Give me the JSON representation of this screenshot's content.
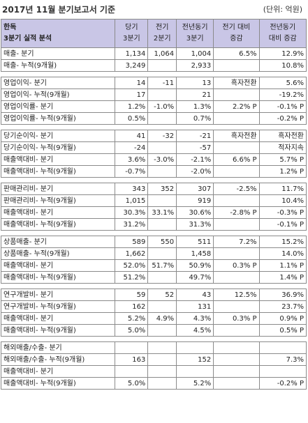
{
  "title": "2017년 11월 분기보고서 기준",
  "unit": "(단위: 억원)",
  "header": {
    "company_line1": "한독",
    "company_line2": "3분기 실적 분석",
    "col1_line1": "당기",
    "col1_line2": "3분기",
    "col2_line1": "전기",
    "col2_line2": "2분기",
    "col3_line1": "전년동기",
    "col3_line2": "3분기",
    "col4_line1": "전기 대비",
    "col4_line2": "증감",
    "col5_line1": "전년동기",
    "col5_line2": "대비 증감"
  },
  "sections": [
    {
      "rows": [
        [
          "매출- 분기",
          "1,134",
          "1,064",
          "1,004",
          "6.5%",
          "12.9%"
        ],
        [
          "매출- 누적(9개월)",
          "3,249",
          "",
          "2,933",
          "",
          "10.8%"
        ]
      ]
    },
    {
      "rows": [
        [
          "영업이익- 분기",
          "14",
          "-11",
          "13",
          "흑자전환",
          "5.6%"
        ],
        [
          "영업이익- 누적(9개월)",
          "17",
          "",
          "21",
          "",
          "-19.2%"
        ],
        [
          "영업이익률- 분기",
          "1.2%",
          "-1.0%",
          "1.3%",
          "2.2% P",
          "-0.1% P"
        ],
        [
          "영업이익률- 누적(9개월)",
          "0.5%",
          "",
          "0.7%",
          "",
          "-0.2% P"
        ]
      ]
    },
    {
      "rows": [
        [
          "당기순이익- 분기",
          "41",
          "-32",
          "-21",
          "흑자전환",
          "흑자전환"
        ],
        [
          "당기순이익- 누적(9개월)",
          "-24",
          "",
          "-57",
          "",
          "적자지속"
        ],
        [
          "매출액대비- 분기",
          "3.6%",
          "-3.0%",
          "-2.1%",
          "6.6% P",
          "5.7% P"
        ],
        [
          "매출액대비- 누적(9개월)",
          "-0.7%",
          "",
          "-2.0%",
          "",
          "1.2% P"
        ]
      ]
    },
    {
      "rows": [
        [
          "판매관리비- 분기",
          "343",
          "352",
          "307",
          "-2.5%",
          "11.7%"
        ],
        [
          "판매관리비- 누적(9개월)",
          "1,015",
          "",
          "919",
          "",
          "10.4%"
        ],
        [
          "매출액대비- 분기",
          "30.3%",
          "33.1%",
          "30.6%",
          "-2.8% P",
          "-0.3% P"
        ],
        [
          "매출액대비- 누적(9개월)",
          "31.2%",
          "",
          "31.3%",
          "",
          "-0.1% P"
        ]
      ]
    },
    {
      "rows": [
        [
          "상품매출- 분기",
          "589",
          "550",
          "511",
          "7.2%",
          "15.2%"
        ],
        [
          "상품매출- 누적(9개월)",
          "1,662",
          "",
          "1,458",
          "",
          "14.0%"
        ],
        [
          "매출액대비- 분기",
          "52.0%",
          "51.7%",
          "50.9%",
          "0.3% P",
          "1.1% P"
        ],
        [
          "매출액대비- 누적(9개월)",
          "51.2%",
          "",
          "49.7%",
          "",
          "1.4% P"
        ]
      ]
    },
    {
      "rows": [
        [
          "연구개발비- 분기",
          "59",
          "52",
          "43",
          "12.5%",
          "36.9%"
        ],
        [
          "연구개발비- 누적(9개월)",
          "162",
          "",
          "131",
          "",
          "23.7%"
        ],
        [
          "매출액대비- 분기",
          "5.2%",
          "4.9%",
          "4.3%",
          "0.3% P",
          "0.9% P"
        ],
        [
          "매출액대비- 누적(9개월)",
          "5.0%",
          "",
          "4.5%",
          "",
          "0.5% P"
        ]
      ]
    },
    {
      "rows": [
        [
          "해외매출/수출- 분기",
          "",
          "",
          "",
          "",
          ""
        ],
        [
          "해외매출/수출- 누적(9개월)",
          "163",
          "",
          "152",
          "",
          "7.3%"
        ],
        [
          "매출액대비- 분기",
          "",
          "",
          "",
          "",
          ""
        ],
        [
          "매출액대비- 누적(9개월)",
          "5.0%",
          "",
          "5.2%",
          "",
          "-0.2% P"
        ]
      ]
    }
  ]
}
